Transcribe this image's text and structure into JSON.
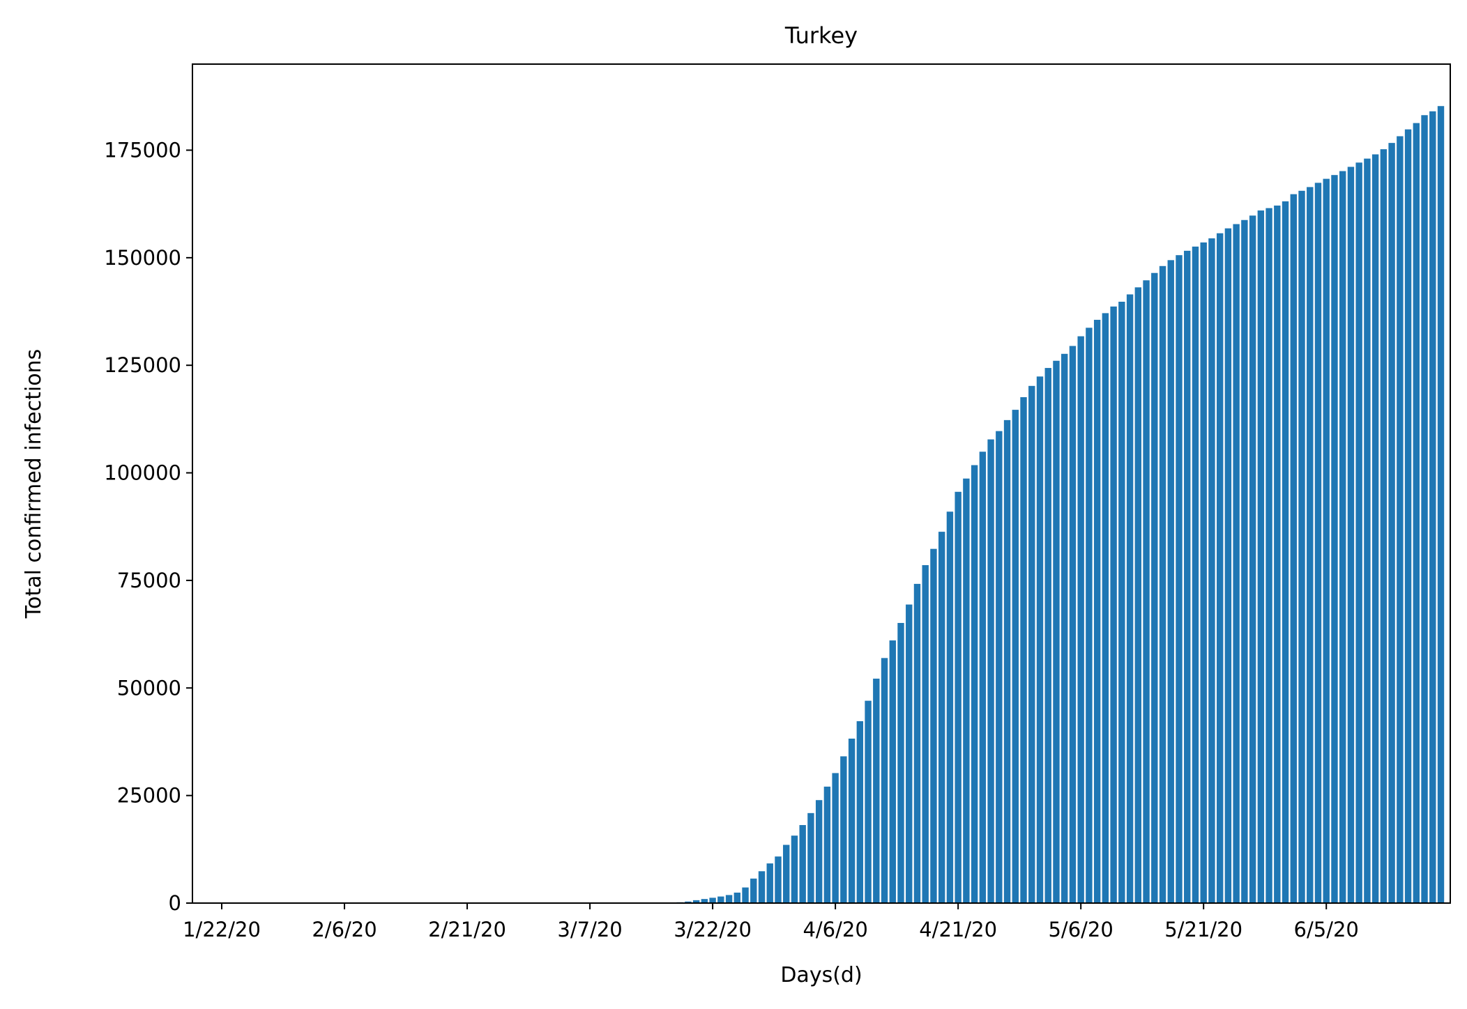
{
  "chart_data": {
    "type": "bar",
    "title": "Turkey",
    "xlabel": "Days(d)",
    "ylabel": "Total confirmed infections",
    "ylim": [
      0,
      195000
    ],
    "yticks": [
      0,
      25000,
      50000,
      75000,
      100000,
      125000,
      150000,
      175000
    ],
    "xtick_labels": [
      "1/22/20",
      "2/6/20",
      "2/21/20",
      "3/7/20",
      "3/22/20",
      "4/6/20",
      "4/21/20",
      "5/6/20",
      "5/21/20",
      "6/5/20"
    ],
    "grid": false,
    "legend": null,
    "bar_color": "#1f77b4",
    "series": [
      {
        "values": [
          0,
          0,
          0,
          0,
          0,
          0,
          0,
          0,
          0,
          0,
          0,
          0,
          0,
          0,
          0,
          0,
          0,
          0,
          0,
          0,
          0,
          0,
          0,
          0,
          0,
          0,
          0,
          0,
          0,
          0,
          0,
          0,
          0,
          0,
          0,
          0,
          0,
          0,
          0,
          0,
          0,
          0,
          0,
          0,
          0,
          0,
          0,
          0,
          0,
          0,
          1,
          5,
          6,
          18,
          47,
          98,
          192,
          359,
          670,
          947,
          1236,
          1529,
          1872,
          2433,
          3629,
          5698,
          7402,
          9217,
          10827,
          13531,
          15679,
          18135,
          20921,
          23934,
          27069,
          30217,
          34109,
          38226,
          42282,
          47029,
          52167,
          56956,
          61049,
          65111,
          69392,
          74193,
          78546,
          82329,
          86306,
          90980,
          95591,
          98674,
          101790,
          104912,
          107773,
          109704,
          112261,
          114653,
          117589,
          120204,
          122392,
          124375,
          126045,
          127659,
          129491,
          131744,
          133721,
          135569,
          137115,
          138657,
          139771,
          141475,
          143114,
          144749,
          146457,
          148067,
          149435,
          150593,
          151615,
          152587,
          153548,
          154500,
          155686,
          156827,
          157814,
          158762,
          159797,
          160979,
          161531,
          162120,
          163103,
          164769,
          165555,
          166422,
          167410,
          168340,
          169218,
          170132,
          171121,
          172114,
          173036,
          174023,
          175218,
          176677,
          178239,
          179831,
          181298,
          183133,
          184031,
          185245
        ]
      }
    ]
  }
}
